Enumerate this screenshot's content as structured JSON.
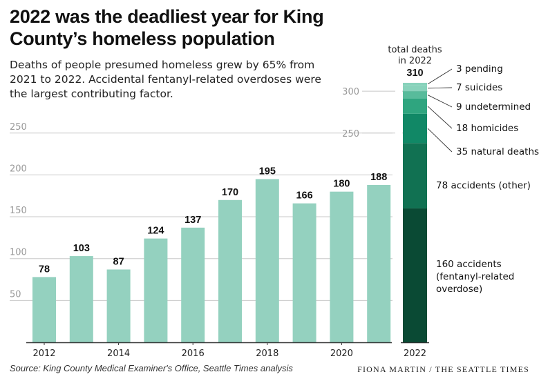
{
  "title": "2022 was the deadliest year for King County’s homeless population",
  "subtitle": "Deaths of people presumed homeless grew by 65% from 2021 to 2022. Accidental fentanyl-related overdoses were the largest contributing factor.",
  "source": "Source: King County Medical Examiner's Office, Seattle Times analysis",
  "credit": "Fiona Martin / The Seattle Times",
  "colors": {
    "bar": "#94d1bf",
    "grid": "#c8c8c8",
    "axis_text": "#999999",
    "stack": [
      "#0a4a34",
      "#117152",
      "#118866",
      "#2fa57f",
      "#58bb9b",
      "#88d2bb"
    ]
  },
  "chart_data": [
    {
      "type": "bar",
      "title": "Deaths of people presumed homeless",
      "categories": [
        "2012",
        "2013",
        "2014",
        "2015",
        "2016",
        "2017",
        "2018",
        "2019",
        "2020",
        "2021"
      ],
      "values": [
        78,
        103,
        87,
        124,
        137,
        170,
        195,
        166,
        180,
        188
      ],
      "value_labels": [
        "78",
        "103",
        "87",
        "124",
        "137",
        "170",
        "195",
        "166",
        "180",
        "188"
      ],
      "x_tick_labels": [
        "2012",
        "2014",
        "2016",
        "2018",
        "2020"
      ],
      "y_ticks": [
        50,
        100,
        150,
        200,
        250
      ],
      "y_tick_labels": [
        "50",
        "100",
        "150",
        "200",
        "250"
      ],
      "ylim": [
        0,
        310
      ],
      "grid": true
    },
    {
      "type": "bar",
      "stacked": true,
      "title": "total deaths in 2022",
      "category": "2022",
      "total": 310,
      "total_label": "310",
      "y_ticks": [
        250,
        300
      ],
      "y_tick_labels": [
        "250",
        "300"
      ],
      "segments": [
        {
          "name": "accidents (fentanyl-related overdose)",
          "value": 160,
          "label": "160 accidents (fentanyl-related overdose)"
        },
        {
          "name": "accidents (other)",
          "value": 78,
          "label": "78 accidents (other)"
        },
        {
          "name": "natural deaths",
          "value": 35,
          "label": "35 natural deaths"
        },
        {
          "name": "homicides",
          "value": 18,
          "label": "18 homicides"
        },
        {
          "name": "undetermined",
          "value": 9,
          "label": "9 undetermined"
        },
        {
          "name": "suicides",
          "value": 7,
          "label": "7 suicides"
        },
        {
          "name": "pending",
          "value": 3,
          "label": "3 pending"
        }
      ]
    }
  ]
}
